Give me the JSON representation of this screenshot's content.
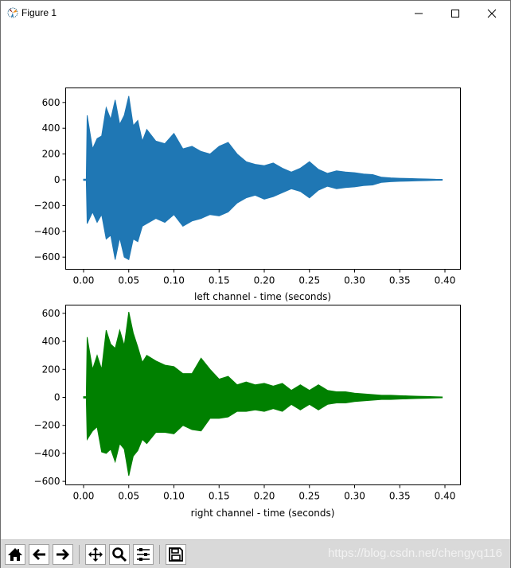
{
  "window": {
    "title": "Figure 1",
    "controls": {
      "minimize": "minimize",
      "maximize": "maximize",
      "close": "close"
    }
  },
  "toolbar": {
    "buttons": [
      {
        "name": "home",
        "icon": "home-icon"
      },
      {
        "name": "back",
        "icon": "arrow-left-icon"
      },
      {
        "name": "forward",
        "icon": "arrow-right-icon"
      },
      {
        "name": "pan",
        "icon": "move-icon"
      },
      {
        "name": "zoom",
        "icon": "magnifier-icon"
      },
      {
        "name": "configure-subplots",
        "icon": "sliders-icon"
      },
      {
        "name": "save",
        "icon": "floppy-disk-icon"
      }
    ],
    "watermark": "https://blog.csdn.net/chengyq116"
  },
  "chart_data": [
    {
      "type": "line",
      "title": "",
      "xlabel": "left channel - time (seconds)",
      "ylabel": "",
      "color": "#1f77b4",
      "xlim": [
        -0.02,
        0.42
      ],
      "ylim": [
        -680,
        700
      ],
      "xticks": [
        "0.00",
        "0.05",
        "0.10",
        "0.15",
        "0.20",
        "0.25",
        "0.30",
        "0.35",
        "0.40"
      ],
      "yticks": [
        "600",
        "400",
        "200",
        "0",
        "−200",
        "−400",
        "−600"
      ],
      "grid": false,
      "envelope": {
        "x": [
          0.0,
          0.003,
          0.004,
          0.01,
          0.015,
          0.02,
          0.025,
          0.03,
          0.035,
          0.04,
          0.045,
          0.05,
          0.055,
          0.06,
          0.065,
          0.07,
          0.08,
          0.09,
          0.1,
          0.11,
          0.12,
          0.13,
          0.14,
          0.15,
          0.16,
          0.17,
          0.18,
          0.19,
          0.2,
          0.21,
          0.22,
          0.23,
          0.24,
          0.25,
          0.26,
          0.27,
          0.28,
          0.29,
          0.3,
          0.31,
          0.32,
          0.33,
          0.34,
          0.35,
          0.36,
          0.37,
          0.38,
          0.39,
          0.397
        ],
        "upper": [
          5,
          5,
          500,
          240,
          320,
          340,
          560,
          470,
          620,
          430,
          500,
          650,
          420,
          460,
          300,
          390,
          300,
          280,
          360,
          240,
          260,
          220,
          200,
          260,
          290,
          200,
          140,
          120,
          110,
          130,
          90,
          60,
          90,
          140,
          80,
          50,
          70,
          60,
          55,
          45,
          40,
          20,
          15,
          12,
          10,
          8,
          6,
          4,
          3
        ],
        "lower": [
          -5,
          -5,
          -340,
          -250,
          -330,
          -270,
          -460,
          -430,
          -620,
          -450,
          -600,
          -620,
          -460,
          -480,
          -360,
          -340,
          -300,
          -330,
          -270,
          -360,
          -320,
          -300,
          -270,
          -280,
          -250,
          -180,
          -140,
          -120,
          -150,
          -130,
          -100,
          -70,
          -90,
          -140,
          -80,
          -50,
          -70,
          -60,
          -55,
          -45,
          -40,
          -20,
          -15,
          -12,
          -10,
          -8,
          -6,
          -4,
          -3
        ]
      }
    },
    {
      "type": "line",
      "title": "",
      "xlabel": "right channel - time (seconds)",
      "ylabel": "",
      "color": "#008000",
      "xlim": [
        -0.02,
        0.42
      ],
      "ylim": [
        -620,
        660
      ],
      "xticks": [
        "0.00",
        "0.05",
        "0.10",
        "0.15",
        "0.20",
        "0.25",
        "0.30",
        "0.35",
        "0.40"
      ],
      "yticks": [
        "600",
        "400",
        "200",
        "0",
        "−200",
        "−400",
        "−600"
      ],
      "grid": false,
      "envelope": {
        "x": [
          0.0,
          0.003,
          0.004,
          0.01,
          0.015,
          0.02,
          0.025,
          0.03,
          0.035,
          0.04,
          0.045,
          0.05,
          0.055,
          0.06,
          0.065,
          0.07,
          0.08,
          0.09,
          0.1,
          0.11,
          0.12,
          0.13,
          0.14,
          0.15,
          0.16,
          0.17,
          0.18,
          0.19,
          0.2,
          0.21,
          0.22,
          0.23,
          0.24,
          0.25,
          0.26,
          0.27,
          0.28,
          0.29,
          0.3,
          0.31,
          0.32,
          0.33,
          0.34,
          0.35,
          0.36,
          0.37,
          0.38,
          0.39,
          0.397
        ],
        "upper": [
          5,
          5,
          430,
          200,
          300,
          200,
          480,
          380,
          350,
          480,
          370,
          610,
          460,
          360,
          250,
          300,
          260,
          230,
          220,
          170,
          170,
          280,
          200,
          130,
          150,
          90,
          110,
          90,
          100,
          80,
          100,
          50,
          90,
          50,
          90,
          50,
          40,
          40,
          30,
          25,
          20,
          15,
          15,
          12,
          10,
          8,
          6,
          4,
          3
        ],
        "lower": [
          -5,
          -5,
          -300,
          -240,
          -210,
          -390,
          -400,
          -370,
          -460,
          -330,
          -370,
          -560,
          -420,
          -380,
          -300,
          -330,
          -250,
          -250,
          -260,
          -200,
          -230,
          -240,
          -150,
          -150,
          -140,
          -100,
          -100,
          -90,
          -100,
          -80,
          -100,
          -50,
          -90,
          -50,
          -90,
          -50,
          -40,
          -40,
          -30,
          -25,
          -20,
          -15,
          -15,
          -12,
          -10,
          -8,
          -6,
          -4,
          -3
        ]
      }
    }
  ]
}
